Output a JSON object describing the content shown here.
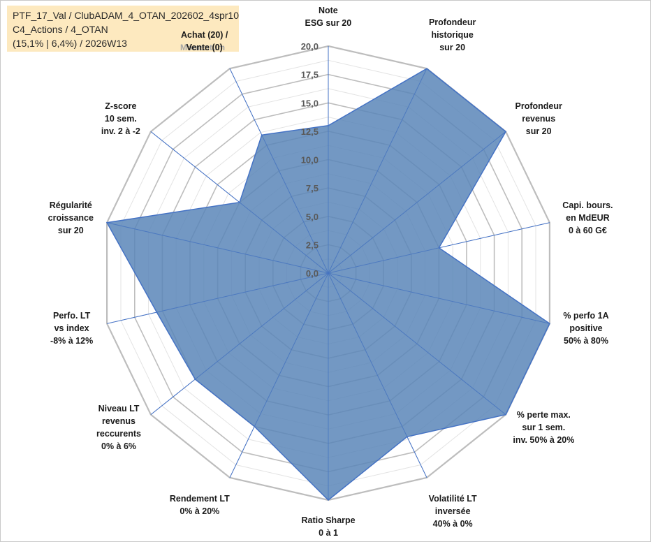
{
  "header": {
    "line1": "PTF_17_Val / ClubADAM_4_OTAN_202602_4spr10",
    "line2": "C4_Actions / 4_OTAN",
    "line3": "(15,1% | 6,4%) / 2026W13"
  },
  "momentum_label": "Momentum",
  "colors": {
    "fill": "#5b86b8",
    "stroke": "#4472c4",
    "grid": "#bfbfbf",
    "info_bg": "#fde9bf"
  },
  "chart_data": {
    "type": "radar",
    "title": "",
    "rmin": 0,
    "rmax": 20,
    "tick_labels": [
      "0,0",
      "2,5",
      "5,0",
      "7,5",
      "10,0",
      "12,5",
      "15,0",
      "17,5",
      "20,0"
    ],
    "axes": [
      {
        "lines": [
          "Note",
          "ESG sur 20"
        ]
      },
      {
        "lines": [
          "Profondeur",
          "historique",
          "sur 20"
        ]
      },
      {
        "lines": [
          "Profondeur",
          "revenus",
          "sur 20"
        ]
      },
      {
        "lines": [
          "Capi. bours.",
          "en MdEUR",
          "0 à 60 G€"
        ]
      },
      {
        "lines": [
          "% perfo 1A",
          "positive",
          "50% à 80%"
        ]
      },
      {
        "lines": [
          "% perte max.",
          "sur 1 sem.",
          "inv. 50% à 20%"
        ]
      },
      {
        "lines": [
          "Volatilité LT",
          "inversée",
          "40% à 0%"
        ]
      },
      {
        "lines": [
          "Ratio Sharpe",
          "0 à 1"
        ]
      },
      {
        "lines": [
          "Rendement LT",
          "0% à 20%"
        ]
      },
      {
        "lines": [
          "Niveau LT",
          "revenus",
          "reccurents",
          "0% à 6%"
        ]
      },
      {
        "lines": [
          "Perfo. LT",
          "vs index",
          "-8% à 12%"
        ]
      },
      {
        "lines": [
          "Régularité",
          "croissance",
          "sur 20"
        ]
      },
      {
        "lines": [
          "Z-score",
          "10 sem.",
          "inv. 2 à -2"
        ]
      },
      {
        "lines": [
          "Achat (20) /",
          "Vente (0)"
        ]
      }
    ],
    "series": [
      {
        "name": "PTF_17_Val",
        "values": [
          13,
          20,
          20,
          10,
          20,
          20,
          16,
          20,
          15,
          15,
          15.5,
          20,
          10,
          13.5
        ]
      }
    ]
  }
}
